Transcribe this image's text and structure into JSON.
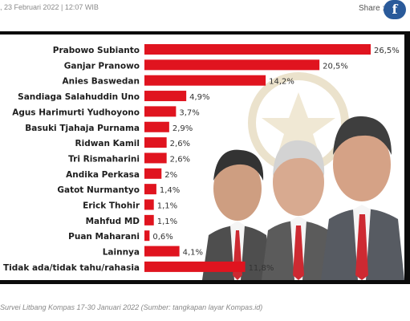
{
  "header": {
    "dateline": ", 23 Februari 2022 | 12:07 WIB",
    "share_label": "Share :",
    "share_icon": "facebook-icon",
    "share_icon_glyph": "f"
  },
  "caption": "Survei Litbang Kompas 17-30 Januari 2022 (Sumber: tangkapan layar Kompas.id)",
  "colors": {
    "bar": "#e0141f",
    "frame": "#0b0b0b",
    "facebook": "#2a5a9a"
  },
  "chart_data": {
    "type": "bar",
    "orientation": "horizontal",
    "title": "",
    "xlabel": "",
    "ylabel": "",
    "grid": false,
    "xlim": [
      0,
      26.5
    ],
    "categories": [
      "Prabowo Subianto",
      "Ganjar Pranowo",
      "Anies Baswedan",
      "Sandiaga Salahuddin Uno",
      "Agus Harimurti Yudhoyono",
      "Basuki Tjahaja Purnama",
      "Ridwan Kamil",
      "Tri Rismaharini",
      "Andika Perkasa",
      "Gatot Nurmantyo",
      "Erick Thohir",
      "Mahfud MD",
      "Puan Maharani",
      "Lainnya",
      "Tidak ada/tidak tahu/rahasia"
    ],
    "values": [
      26.5,
      20.5,
      14.2,
      4.9,
      3.7,
      2.9,
      2.6,
      2.6,
      2.0,
      1.4,
      1.1,
      1.1,
      0.6,
      4.1,
      11.8
    ],
    "value_labels": [
      "26,5%",
      "20,5%",
      "14,2%",
      "4,9%",
      "3,7%",
      "2,9%",
      "2,6%",
      "2,6%",
      "2%",
      "1,4%",
      "1,1%",
      "1,1%",
      "0,6%",
      "4,1%",
      "11,8%"
    ]
  }
}
